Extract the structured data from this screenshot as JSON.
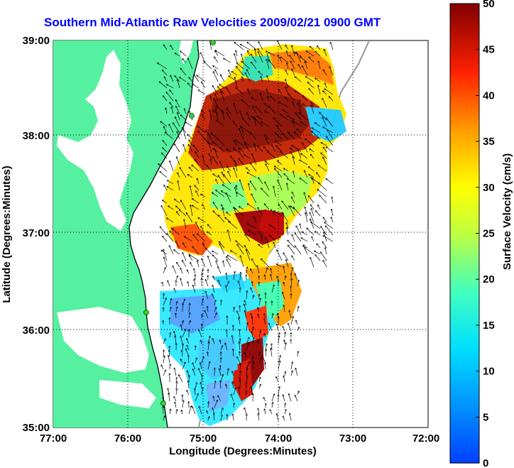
{
  "title": "Southern Mid-Atlantic Raw Velocities 2009/02/21 0900 GMT",
  "x_axis": {
    "label": "Longitude (Degrees:Minutes)",
    "ticks": [
      "77:00",
      "76:00",
      "75:00",
      "74:00",
      "73:00",
      "72:00"
    ]
  },
  "y_axis": {
    "label": "Latitude (Degrees:Minutes)",
    "ticks": [
      "39:00",
      "38:00",
      "37:00",
      "36:00",
      "35:00"
    ]
  },
  "colorbar": {
    "label": "Surface Velocity (cm/s)",
    "ticks": [
      "50",
      "45",
      "40",
      "35",
      "30",
      "25",
      "20",
      "15",
      "10",
      "5",
      "0"
    ],
    "min": 0,
    "max": 50
  },
  "colors": {
    "land": "#55f0a0",
    "title": "#0000ff",
    "station": "#22dd22"
  }
}
